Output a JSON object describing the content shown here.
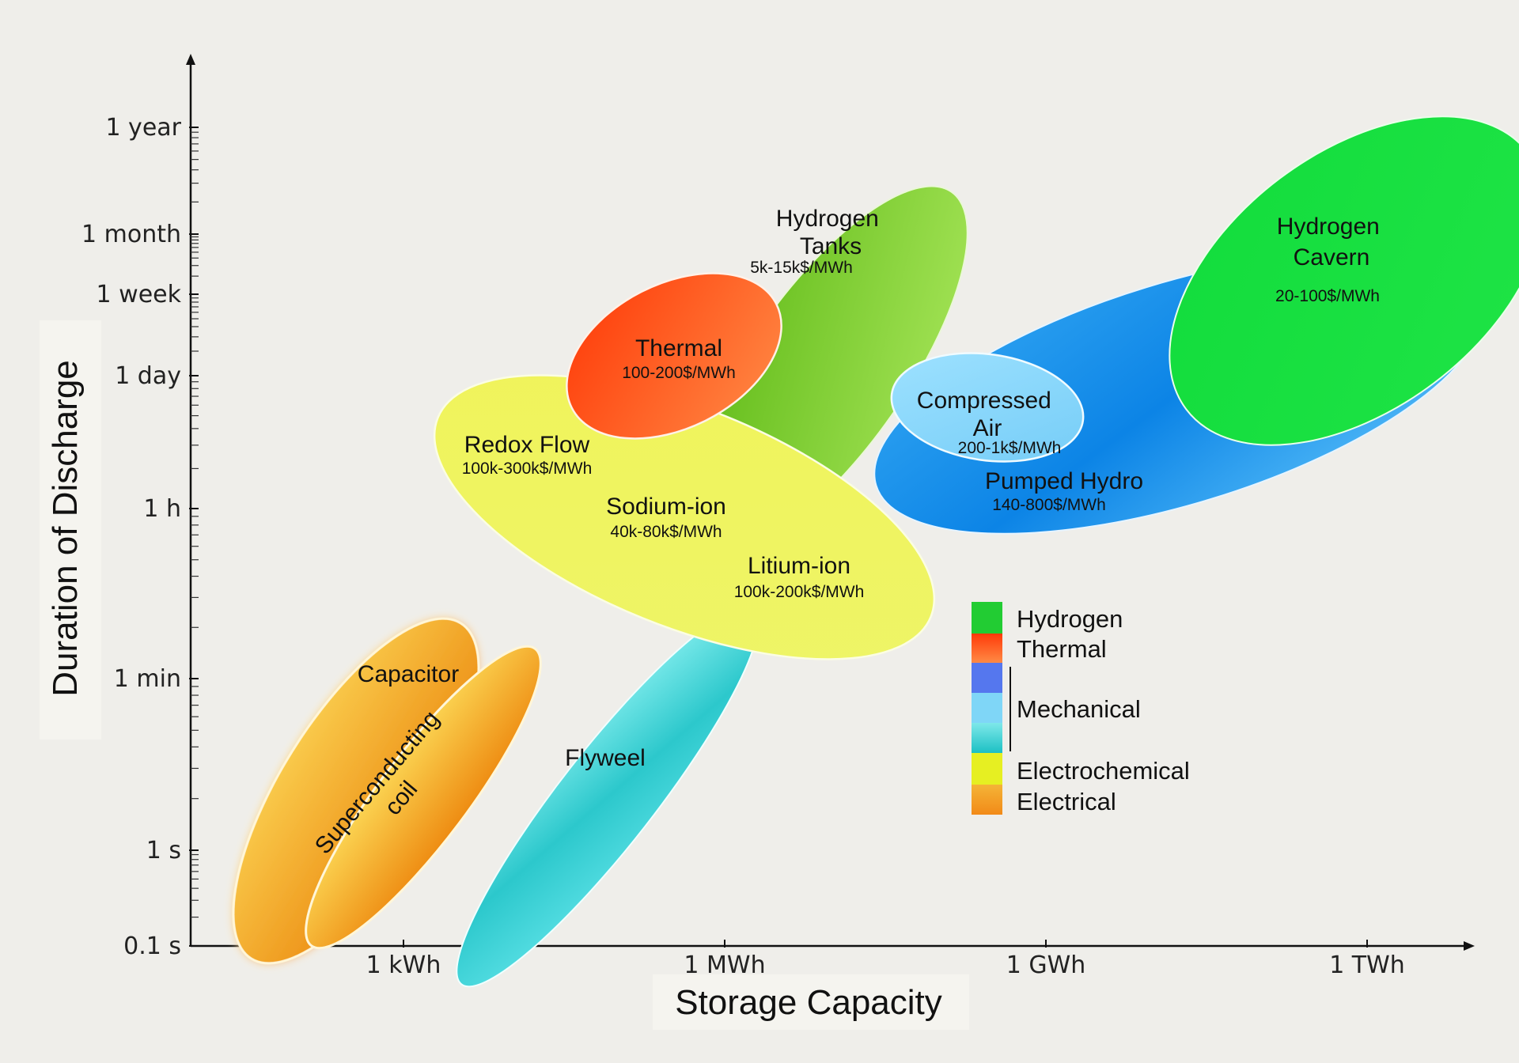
{
  "chart_data": {
    "type": "scatter",
    "xlabel": "Storage Capacity",
    "ylabel": "Duration of Discharge",
    "x_ticks": [
      "1 kWh",
      "1 MWh",
      "1 GWh",
      "1 TWh"
    ],
    "y_ticks": [
      "0.1 s",
      "1 s",
      "1 min",
      "1 h",
      "1 day",
      "1 week",
      "1 month",
      "1 year"
    ],
    "technologies": [
      {
        "name": "Capacitor",
        "price": "",
        "category": "Electrical"
      },
      {
        "name": "Superconducting coil",
        "price": "",
        "category": "Electrical"
      },
      {
        "name": "Flyweel",
        "price": "",
        "category": "Mechanical"
      },
      {
        "name": "Hydrogen Tanks",
        "price": "5k-15k$/MWh",
        "category": "Hydrogen"
      },
      {
        "name": "Pumped Hydro",
        "price": "140-800$/MWh",
        "category": "Mechanical"
      },
      {
        "name": "Hydrogen Cavern",
        "price": "20-100$/MWh",
        "category": "Hydrogen"
      },
      {
        "name": "Redox Flow",
        "price": "100k-300k$/MWh",
        "category": "Electrochemical"
      },
      {
        "name": "Sodium-ion",
        "price": "40k-80k$/MWh",
        "category": "Electrochemical"
      },
      {
        "name": "Litium-ion",
        "price": "100k-200k$/MWh",
        "category": "Electrochemical"
      },
      {
        "name": "Thermal",
        "price": "100-200$/MWh",
        "category": "Thermal"
      },
      {
        "name": "Compressed Air",
        "price": "200-1k$/MWh",
        "category": "Mechanical"
      }
    ],
    "legend": [
      {
        "label": "Hydrogen",
        "color": "#22cc33"
      },
      {
        "label": "Thermal",
        "color": "#ff5522"
      },
      {
        "label": "Mechanical",
        "colors": [
          "#5577ee",
          "#7fd6f7",
          "#33cccc"
        ]
      },
      {
        "label": "Electrochemical",
        "color": "#e6ef22"
      },
      {
        "label": "Electrical",
        "color": "#f7a02a"
      }
    ],
    "legend_position": "lower-right"
  }
}
